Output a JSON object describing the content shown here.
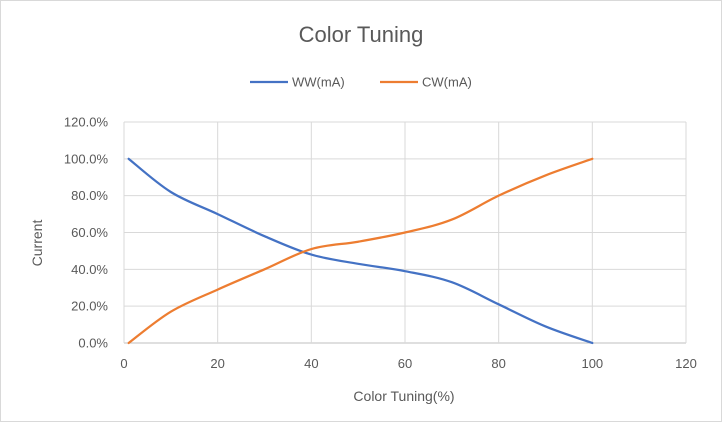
{
  "chart_data": {
    "type": "line",
    "title": "Color Tuning",
    "xlabel": "Color Tuning(%)",
    "ylabel": "Current",
    "xlim": [
      0,
      120
    ],
    "ylim": [
      0,
      1.2
    ],
    "x_ticks": [
      "0",
      "20",
      "40",
      "60",
      "80",
      "100",
      "120"
    ],
    "y_ticks": [
      "0.0%",
      "20.0%",
      "40.0%",
      "60.0%",
      "80.0%",
      "100.0%",
      "120.0%"
    ],
    "grid": true,
    "legend_position": "top",
    "series": [
      {
        "name": "WW(mA)",
        "color": "#4472C4",
        "x": [
          1,
          10,
          20,
          30,
          40,
          50,
          60,
          70,
          80,
          90,
          100
        ],
        "y": [
          1.0,
          0.82,
          0.7,
          0.58,
          0.48,
          0.43,
          0.39,
          0.33,
          0.21,
          0.09,
          0.0
        ]
      },
      {
        "name": "CW(mA)",
        "color": "#ED7D31",
        "x": [
          1,
          10,
          20,
          30,
          40,
          50,
          60,
          70,
          80,
          90,
          100
        ],
        "y": [
          0.0,
          0.17,
          0.29,
          0.4,
          0.51,
          0.55,
          0.6,
          0.67,
          0.8,
          0.91,
          1.0
        ]
      }
    ]
  }
}
